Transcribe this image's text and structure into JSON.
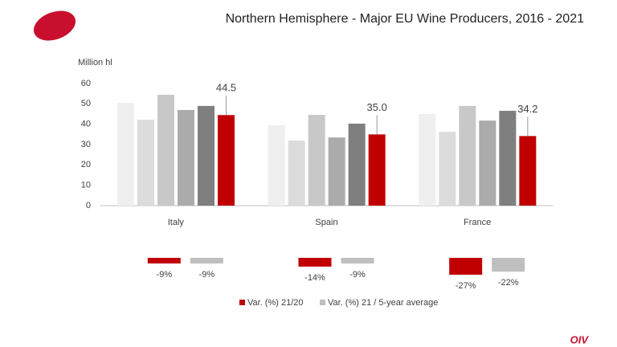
{
  "chart_data": [
    {
      "type": "bar",
      "title": "Northern Hemisphere - Major EU Wine Producers, 2016 - 2021",
      "y_label": "Million hl",
      "categories": [
        "Italy",
        "Spain",
        "France"
      ],
      "series": [
        {
          "color": "#efefef",
          "values": [
            50.5,
            39.5,
            45
          ]
        },
        {
          "color": "#dcdcdc",
          "values": [
            42.2,
            32,
            36.3
          ]
        },
        {
          "color": "#c8c8c8",
          "values": [
            54.5,
            44.6,
            49
          ]
        },
        {
          "color": "#ababab",
          "values": [
            47,
            33.5,
            41.8
          ]
        },
        {
          "color": "#7f7f7f",
          "values": [
            49,
            40.3,
            46.6
          ]
        },
        {
          "color": "#c00000",
          "values": [
            44.5,
            35,
            34.2
          ],
          "value_labels": [
            "44.5",
            "35.0",
            "34.2"
          ]
        }
      ],
      "ylim": [
        0,
        60
      ],
      "yticks": [
        0,
        10,
        20,
        30,
        40,
        50,
        60
      ],
      "grid": false
    },
    {
      "type": "variation",
      "series": [
        {
          "name": "Var. (%) 21/20",
          "color": "#c00000",
          "values": [
            -9,
            -14,
            -27
          ],
          "value_labels": [
            "-9%",
            "-14%",
            "-27%"
          ]
        },
        {
          "name": "Var. (%) 21 / 5-year average",
          "color": "#bfbfbf",
          "values": [
            -9,
            -9,
            -22
          ],
          "value_labels": [
            "-9%",
            "-9%",
            "-22%"
          ]
        }
      ]
    }
  ],
  "logo": "OIV"
}
